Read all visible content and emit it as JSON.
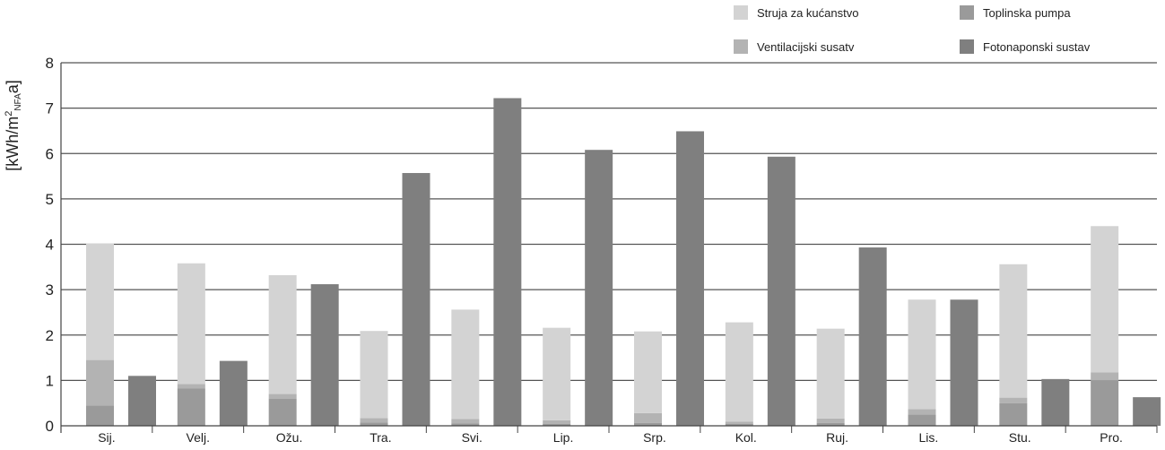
{
  "chart_data": {
    "type": "bar",
    "stacked_with_side_bar": true,
    "ylabel_main": "[kWh/m",
    "ylabel_sup": "2",
    "ylabel_sub": "NFA",
    "ylabel_end": "a]",
    "ylim": [
      0,
      8
    ],
    "yticks": [
      "0",
      "1",
      "2",
      "3",
      "4",
      "5",
      "6",
      "7",
      "8"
    ],
    "grid": true,
    "legend_position": "top-right",
    "categories": [
      "Sij.",
      "Velj.",
      "Ožu.",
      "Tra.",
      "Svi.",
      "Lip.",
      "Srp.",
      "Kol.",
      "Ruj.",
      "Lis.",
      "Stu.",
      "Pro."
    ],
    "series": [
      {
        "name": "Toplinska pumpa",
        "color": "#9a9a9a",
        "stack": "consumption",
        "values": [
          0.45,
          0.82,
          0.6,
          0.07,
          0.05,
          0.04,
          0.06,
          0.04,
          0.06,
          0.25,
          0.5,
          1.0
        ]
      },
      {
        "name": "Ventilacijski susatv",
        "color": "#b3b3b3",
        "stack": "consumption",
        "values": [
          1.0,
          0.1,
          0.1,
          0.1,
          0.1,
          0.08,
          0.22,
          0.05,
          0.1,
          0.12,
          0.12,
          0.18
        ]
      },
      {
        "name": "Struja za kućanstvo",
        "color": "#d3d3d3",
        "stack": "consumption",
        "values": [
          2.57,
          2.66,
          2.62,
          1.92,
          2.41,
          2.04,
          1.8,
          2.19,
          1.98,
          2.41,
          2.94,
          3.22
        ]
      },
      {
        "name": "Fotonaponski sustav",
        "color": "#7f7f7f",
        "stack": "production",
        "values": [
          1.1,
          1.43,
          3.12,
          5.57,
          7.22,
          6.08,
          6.49,
          5.93,
          3.93,
          2.78,
          1.03,
          0.63
        ]
      }
    ],
    "legend": [
      {
        "label": "Struja za kućanstvo",
        "color": "#d3d3d3"
      },
      {
        "label": "Toplinska pumpa",
        "color": "#9a9a9a"
      },
      {
        "label": "Ventilacijski susatv",
        "color": "#b3b3b3"
      },
      {
        "label": "Fotonaponski sustav",
        "color": "#7f7f7f"
      }
    ]
  }
}
